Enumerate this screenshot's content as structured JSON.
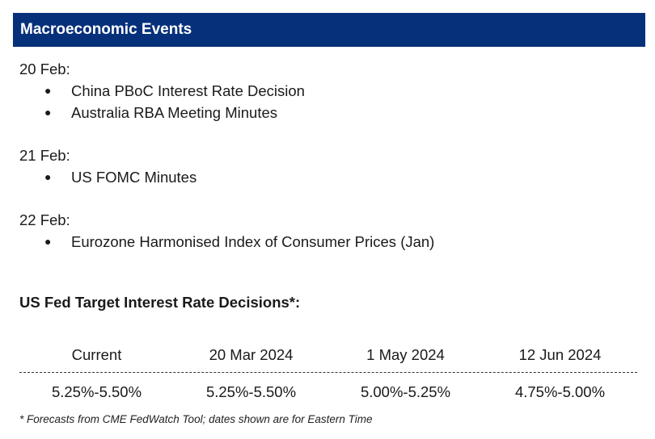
{
  "header": {
    "title": "Macroeconomic Events"
  },
  "events": [
    {
      "date": "20 Feb:",
      "items": [
        "China PBoC Interest Rate Decision",
        "Australia RBA Meeting Minutes"
      ]
    },
    {
      "date": "21 Feb:",
      "items": [
        "US FOMC Minutes"
      ]
    },
    {
      "date": "22 Feb:",
      "items": [
        "Eurozone Harmonised Index of Consumer Prices (Jan)"
      ]
    }
  ],
  "rates": {
    "title": "US Fed Target Interest Rate Decisions*:",
    "columns": [
      "Current",
      "20 Mar 2024",
      "1 May 2024",
      "12 Jun 2024"
    ],
    "values": [
      "5.25%-5.50%",
      "5.25%-5.50%",
      "5.00%-5.25%",
      "4.75%-5.00%"
    ]
  },
  "footnote": "* Forecasts from CME FedWatch Tool; dates shown are for Eastern Time",
  "colors": {
    "header_bg": "#06307a",
    "header_text": "#ffffff"
  },
  "icons": {
    "bullet": "●"
  }
}
